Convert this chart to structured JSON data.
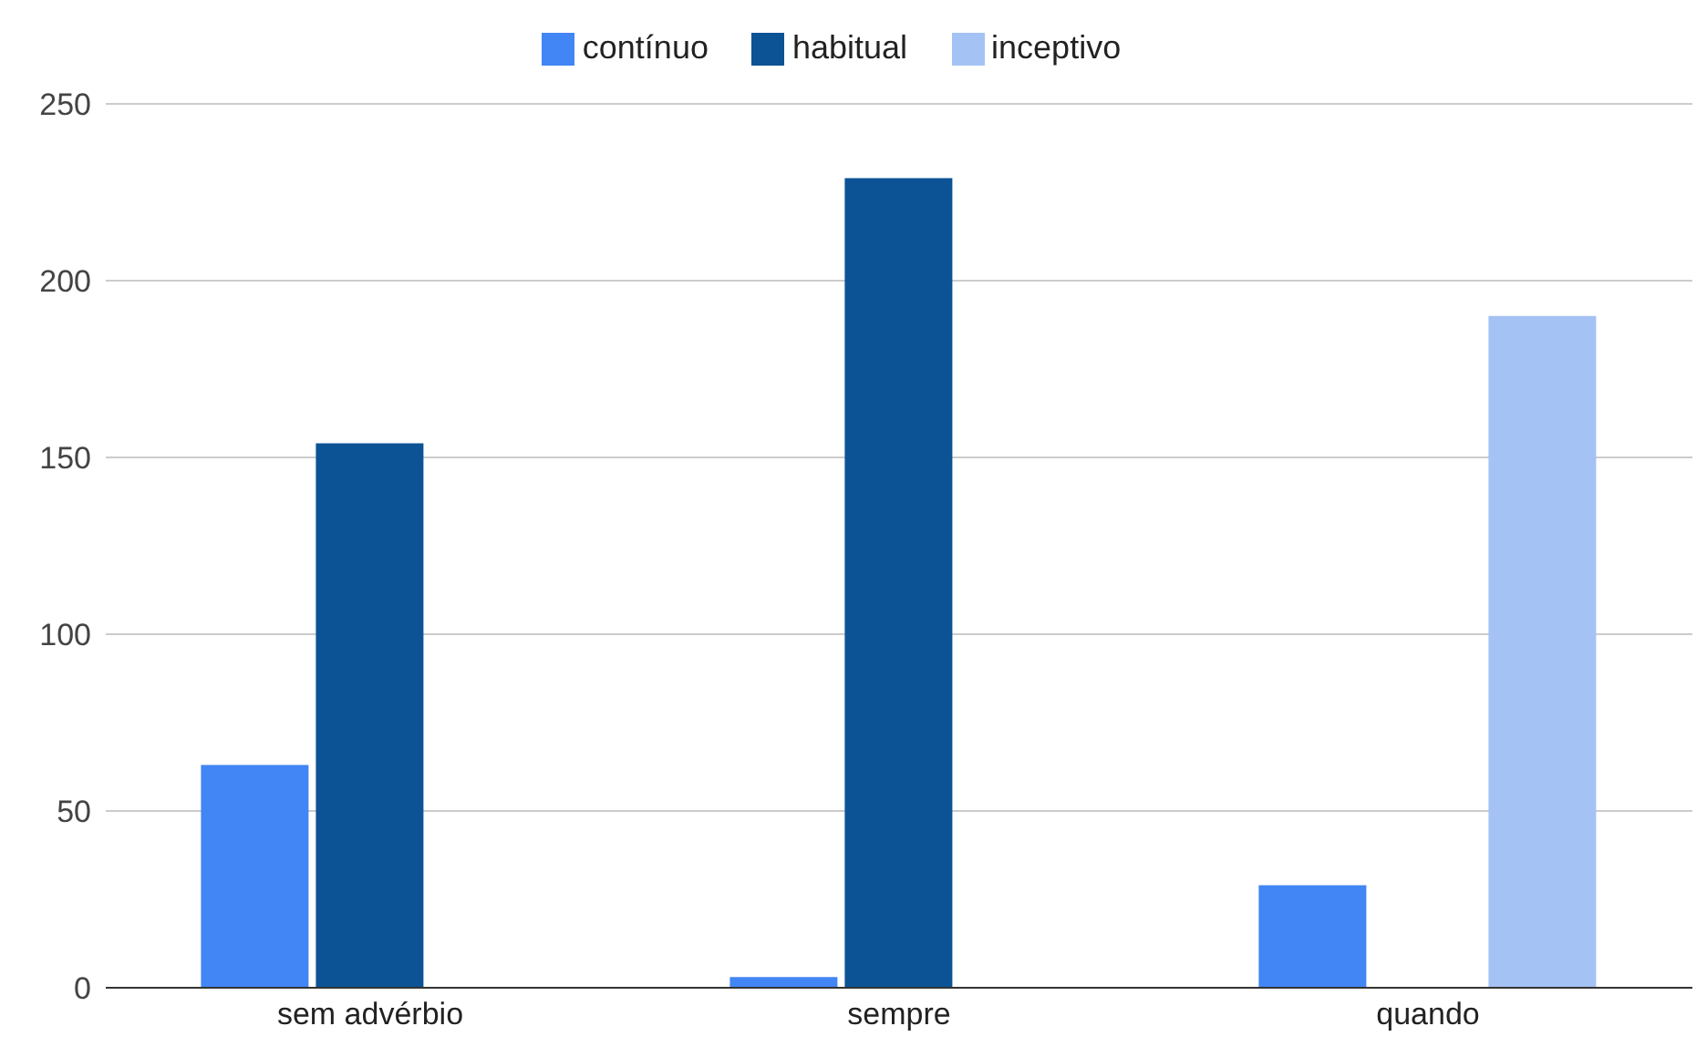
{
  "chart_data": {
    "type": "bar",
    "categories": [
      "sem advérbio",
      "sempre",
      "quando"
    ],
    "series": [
      {
        "name": "contínuo",
        "color": "#4285f4",
        "values": [
          63,
          3,
          29
        ]
      },
      {
        "name": "habitual",
        "color": "#0b5394",
        "values": [
          154,
          229,
          null
        ]
      },
      {
        "name": "inceptivo",
        "color": "#a4c2f4",
        "values": [
          null,
          null,
          190
        ]
      }
    ],
    "ylim": [
      0,
      250
    ],
    "yticks": [
      0,
      50,
      100,
      150,
      200,
      250
    ],
    "grid": "y",
    "legend": "top"
  }
}
